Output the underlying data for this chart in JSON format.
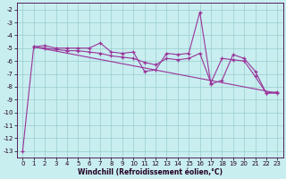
{
  "xlabel": "Windchill (Refroidissement éolien,°C)",
  "bg_color": "#c8eef0",
  "grid_color": "#99cccc",
  "line_color": "#993399",
  "xlim": [
    -0.5,
    23.5
  ],
  "ylim": [
    -13.5,
    -1.5
  ],
  "yticks": [
    -13,
    -12,
    -11,
    -10,
    -9,
    -8,
    -7,
    -6,
    -5,
    -4,
    -3,
    -2
  ],
  "xticks": [
    0,
    1,
    2,
    3,
    4,
    5,
    6,
    7,
    8,
    9,
    10,
    11,
    12,
    13,
    14,
    15,
    16,
    17,
    18,
    19,
    20,
    21,
    22,
    23
  ],
  "line1_x": [
    0,
    1,
    2,
    3,
    4,
    5,
    6,
    7,
    8,
    9,
    10,
    11,
    12,
    13,
    14,
    15,
    16,
    17,
    18,
    19,
    20,
    21,
    22,
    23
  ],
  "line1_y": [
    -13,
    -4.9,
    -4.8,
    -5.0,
    -5.0,
    -5.0,
    -5.0,
    -4.6,
    -5.3,
    -5.4,
    -5.3,
    -6.8,
    -6.7,
    -5.4,
    -5.5,
    -5.4,
    -2.2,
    -7.8,
    -7.5,
    -5.5,
    -5.8,
    -6.8,
    -8.5,
    -8.4
  ],
  "line2_x": [
    1,
    2,
    3,
    4,
    5,
    6,
    7,
    8,
    9,
    10,
    11,
    12,
    13,
    14,
    15,
    16,
    17,
    18,
    19,
    20,
    21,
    22,
    23
  ],
  "line2_y": [
    -4.9,
    -5.0,
    -5.1,
    -5.2,
    -5.2,
    -5.3,
    -5.4,
    -5.6,
    -5.7,
    -5.8,
    -6.1,
    -6.3,
    -5.8,
    -5.9,
    -5.8,
    -5.4,
    -7.7,
    -5.8,
    -5.9,
    -6.0,
    -7.2,
    -8.5,
    -8.5
  ],
  "line3_x": [
    1,
    23
  ],
  "line3_y": [
    -4.9,
    -8.5
  ],
  "tick_fontsize": 5,
  "xlabel_fontsize": 5.5
}
